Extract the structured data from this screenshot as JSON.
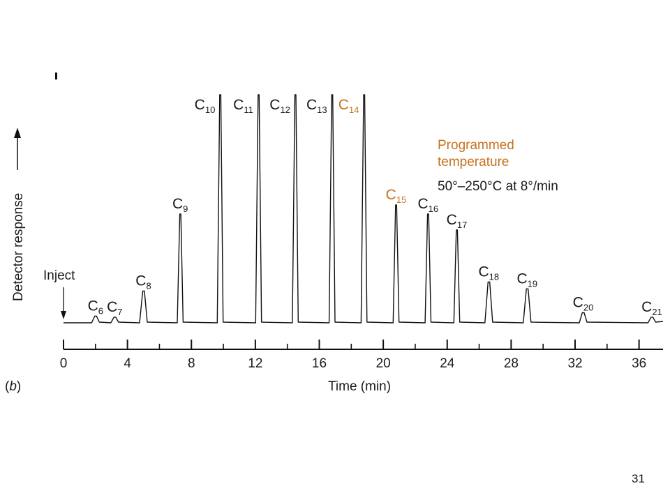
{
  "slide": {
    "page_number": "31"
  },
  "chart_data": {
    "type": "line",
    "xlabel": "Time (min)",
    "ylabel": "Detector response",
    "panel_label": "b",
    "xlim": [
      0,
      37.5
    ],
    "x_ticks": [
      0,
      4,
      8,
      12,
      16,
      20,
      24,
      28,
      32,
      36
    ],
    "inject_label": "Inject",
    "annotation": {
      "line1": "Programmed",
      "line2": "temperature",
      "condition": "50°–250°C at 8°/min"
    },
    "colors": {
      "accent": "#c8701e",
      "trace": "#111111"
    },
    "peaks": [
      {
        "label": "C",
        "sub": "6",
        "time": 2.0,
        "height": 0.03,
        "accent": false
      },
      {
        "label": "C",
        "sub": "7",
        "time": 3.2,
        "height": 0.025,
        "accent": false
      },
      {
        "label": "C",
        "sub": "8",
        "time": 5.0,
        "height": 0.14,
        "accent": false
      },
      {
        "label": "C",
        "sub": "9",
        "time": 7.3,
        "height": 0.48,
        "accent": false
      },
      {
        "label": "C",
        "sub": "10",
        "time": 9.8,
        "height": 1.15,
        "accent": false
      },
      {
        "label": "C",
        "sub": "11",
        "time": 12.2,
        "height": 1.15,
        "accent": false
      },
      {
        "label": "C",
        "sub": "12",
        "time": 14.5,
        "height": 1.15,
        "accent": false
      },
      {
        "label": "C",
        "sub": "13",
        "time": 16.8,
        "height": 1.15,
        "accent": false
      },
      {
        "label": "C",
        "sub": "14",
        "time": 18.8,
        "height": 1.15,
        "accent": true
      },
      {
        "label": "C",
        "sub": "15",
        "time": 20.8,
        "height": 0.52,
        "accent": true
      },
      {
        "label": "C",
        "sub": "16",
        "time": 22.8,
        "height": 0.48,
        "accent": false
      },
      {
        "label": "C",
        "sub": "17",
        "time": 24.6,
        "height": 0.41,
        "accent": false
      },
      {
        "label": "C",
        "sub": "18",
        "time": 26.6,
        "height": 0.18,
        "accent": false
      },
      {
        "label": "C",
        "sub": "19",
        "time": 29.0,
        "height": 0.15,
        "accent": false
      },
      {
        "label": "C",
        "sub": "20",
        "time": 32.5,
        "height": 0.045,
        "accent": false
      },
      {
        "label": "C",
        "sub": "21",
        "time": 36.8,
        "height": 0.025,
        "accent": false
      }
    ]
  }
}
